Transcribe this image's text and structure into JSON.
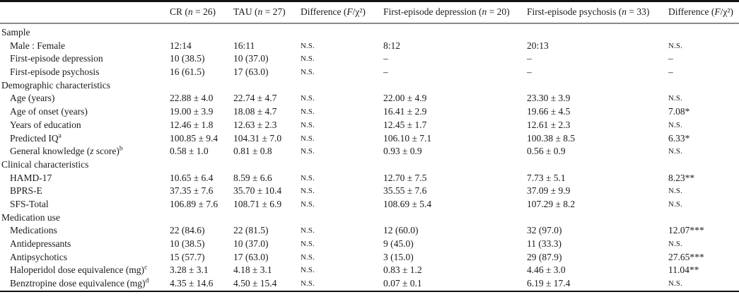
{
  "table": {
    "columns": [
      {
        "pre": "",
        "var": "",
        "post": ""
      },
      {
        "pre": "CR (",
        "var": "n",
        "post": " = 26)"
      },
      {
        "pre": "TAU (",
        "var": "n",
        "post": " = 27)"
      },
      {
        "pre": "Difference (",
        "var": "F",
        "post": "/χ²)"
      },
      {
        "pre": "First-episode depression (",
        "var": "n",
        "post": " = 20)"
      },
      {
        "pre": "First-episode psychosis (",
        "var": "n",
        "post": " = 33)"
      },
      {
        "pre": "Difference (",
        "var": "F",
        "post": "/χ²)"
      }
    ],
    "ns_label": "N.S.",
    "sections": [
      {
        "header": "Sample",
        "rows": [
          {
            "label": "Male : Female",
            "cells": [
              "12:14",
              "16:11",
              "N.S.",
              "8:12",
              "20:13",
              "N.S."
            ]
          },
          {
            "label": "First-episode depression",
            "cells": [
              "10 (38.5)",
              "10 (37.0)",
              "N.S.",
              "–",
              "–",
              "–"
            ]
          },
          {
            "label": "First-episode psychosis",
            "cells": [
              "16 (61.5)",
              "17 (63.0)",
              "N.S.",
              "–",
              "–",
              "–"
            ]
          }
        ]
      },
      {
        "header": "Demographic characteristics",
        "rows": [
          {
            "label": "Age (years)",
            "cells": [
              "22.88 ± 4.0",
              "22.74 ± 4.7",
              "N.S.",
              "22.00 ± 4.9",
              "23.30 ± 3.9",
              "N.S."
            ]
          },
          {
            "label": "Age of onset (years)",
            "cells": [
              "19.00 ± 3.9",
              "18.08 ± 4.7",
              "N.S.",
              "16.41 ± 2.9",
              "19.66 ± 4.5",
              "7.08*"
            ]
          },
          {
            "label": "Years of education",
            "cells": [
              "12.46 ± 1.8",
              "12.63 ± 2.3",
              "N.S.",
              "12.45 ± 1.7",
              "12.61 ± 2.3",
              "N.S."
            ]
          },
          {
            "label": "Predicted IQ",
            "sup": "a",
            "cells": [
              "100.85 ± 9.4",
              "104.31 ± 7.0",
              "N.S.",
              "106.10 ± 7.1",
              "100.38 ± 8.5",
              "6.33*"
            ]
          },
          {
            "pre": "General knowledge (",
            "var": "z",
            "post": " score)",
            "sup": "b",
            "cells": [
              "0.58 ± 1.0",
              "0.81 ± 0.8",
              "N.S.",
              "0.93 ± 0.9",
              "0.56 ± 0.9",
              "N.S."
            ]
          }
        ]
      },
      {
        "header": "Clinical characteristics",
        "rows": [
          {
            "label": "HAMD-17",
            "cells": [
              "10.65 ± 6.4",
              "8.59 ± 6.6",
              "N.S.",
              "12.70 ± 7.5",
              "7.73 ± 5.1",
              "8.23**"
            ]
          },
          {
            "label": "BPRS-E",
            "cells": [
              "37.35 ± 7.6",
              "35.70 ± 10.4",
              "N.S.",
              "35.55 ± 7.6",
              "37.09 ± 9.9",
              "N.S."
            ]
          },
          {
            "label": "SFS-Total",
            "cells": [
              "106.89 ± 7.6",
              "108.71 ± 6.9",
              "N.S.",
              "108.69 ± 5.4",
              "107.29 ± 8.2",
              "N.S."
            ]
          }
        ]
      },
      {
        "header": "Medication use",
        "rows": [
          {
            "label": "Medications",
            "cells": [
              "22 (84.6)",
              "22 (81.5)",
              "N.S.",
              "12 (60.0)",
              "32 (97.0)",
              "12.07***"
            ]
          },
          {
            "label": "Antidepressants",
            "cells": [
              "10 (38.5)",
              "10 (37.0)",
              "N.S.",
              "9 (45.0)",
              "11 (33.3)",
              "N.S."
            ]
          },
          {
            "label": "Antipsychotics",
            "cells": [
              "15 (57.7)",
              "17 (63.0)",
              "N.S.",
              "3 (15.0)",
              "29 (87.9)",
              "27.65***"
            ]
          },
          {
            "label": "Haloperidol dose equivalence (mg)",
            "sup": "c",
            "cells": [
              "3.28 ± 3.1",
              "4.18 ± 3.1",
              "N.S.",
              "0.83 ± 1.2",
              "4.46 ± 3.0",
              "11.04**"
            ]
          },
          {
            "label": "Benztropine dose equivalence (mg)",
            "sup": "d",
            "cells": [
              "4.35 ± 14.6",
              "4.50 ± 15.4",
              "N.S.",
              "0.07 ± 0.1",
              "6.19 ± 17.4",
              "N.S."
            ]
          }
        ]
      }
    ],
    "colors": {
      "background": "#ffffff",
      "text": "#1a1a1a",
      "top_rule": "#111111",
      "header_rule": "#8a8a8a",
      "bottom_rule": "#111111"
    }
  }
}
